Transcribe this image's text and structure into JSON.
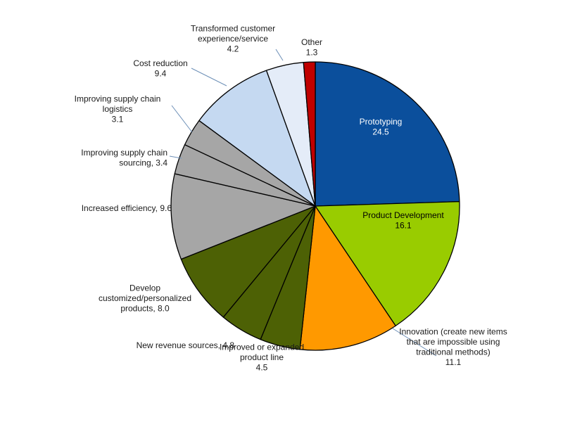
{
  "chart_data": {
    "type": "pie",
    "title": "",
    "start": "12 o'clock",
    "direction": "clockwise",
    "slices": [
      {
        "value": 24.5,
        "color": "#0b4f9c",
        "lines": [
          "Prototyping",
          "24.5"
        ]
      },
      {
        "value": 16.1,
        "color": "#99cc00",
        "lines": [
          "Product Development",
          "16.1"
        ]
      },
      {
        "value": 11.1,
        "color": "#ff9900",
        "lines": [
          "Innovation (create new items",
          "that are impossible using",
          "traditional methods)",
          "11.1"
        ]
      },
      {
        "value": 4.5,
        "color": "#4d6105",
        "lines": [
          "Improved or expanded",
          "product line",
          "4.5"
        ]
      },
      {
        "value": 4.8,
        "color": "#4d6105",
        "lines": [
          "New revenue sources, 4.8"
        ]
      },
      {
        "value": 8.0,
        "color": "#4d6105",
        "lines": [
          "Develop",
          "customized/personalized",
          "products, 8.0"
        ]
      },
      {
        "value": 9.6,
        "color": "#a6a6a6",
        "lines": [
          "Increased efficiency, 9.6"
        ]
      },
      {
        "value": 3.4,
        "color": "#a6a6a6",
        "lines": [
          "Improving supply chain",
          "sourcing, 3.4"
        ]
      },
      {
        "value": 3.1,
        "color": "#a6a6a6",
        "lines": [
          "Improving supply chain",
          "logistics",
          "3.1"
        ]
      },
      {
        "value": 9.4,
        "color": "#c5d9f1",
        "lines": [
          "Cost reduction",
          "9.4"
        ]
      },
      {
        "value": 4.2,
        "color": "#e4ecf8",
        "lines": [
          "Transformed customer",
          "experience/service",
          "4.2"
        ]
      },
      {
        "value": 1.3,
        "color": "#c00000",
        "lines": [
          "Other",
          "1.3"
        ]
      }
    ]
  }
}
